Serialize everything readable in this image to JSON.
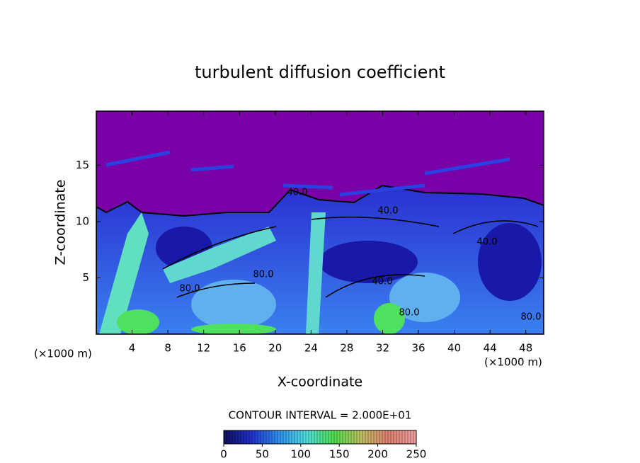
{
  "chart_data": {
    "type": "contour",
    "title": "turbulent diffusion coefficient",
    "x_label": "X-coordinate",
    "y_label": "Z-coordinate",
    "x_unit": "(×1000 m)",
    "x_unit_right": "(×1000 m)",
    "xlim": [
      0,
      50
    ],
    "ylim": [
      0,
      19.8
    ],
    "xticks": [
      4,
      8,
      12,
      16,
      20,
      24,
      28,
      32,
      36,
      40,
      44,
      48
    ],
    "yticks": [
      5,
      10,
      15
    ],
    "contour_labels": [
      "40.0",
      "40.0",
      "80.0",
      "40.0",
      "80.0",
      "80.0",
      "80.0",
      "40.0"
    ],
    "contour_interval_label": "CONTOUR INTERVAL = 2.000E+01",
    "colorbar": {
      "lim": [
        0,
        250
      ],
      "ticks": [
        0,
        50,
        100,
        150,
        200,
        250
      ],
      "colors": [
        "#10105a",
        "#2030d0",
        "#3090f0",
        "#50e0e0",
        "#50e050",
        "#c0c060",
        "#e08070",
        "#f0a0a0"
      ]
    }
  }
}
